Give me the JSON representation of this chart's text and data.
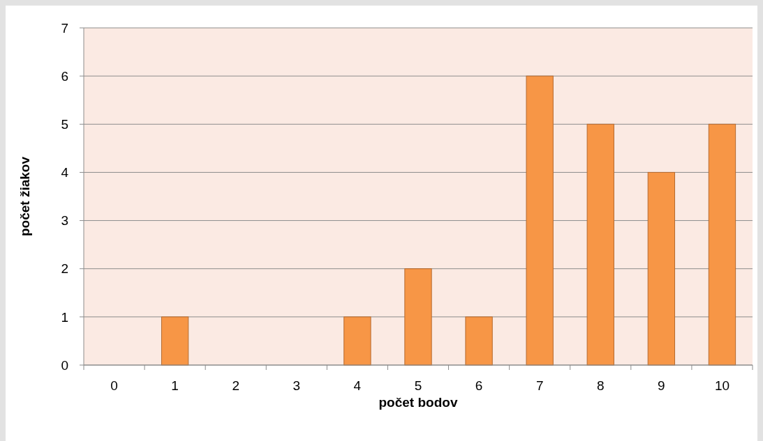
{
  "chart_data": {
    "type": "bar",
    "xlabel": "počet bodov",
    "ylabel": "počet žiakov",
    "categories": [
      "0",
      "1",
      "2",
      "3",
      "4",
      "5",
      "6",
      "7",
      "8",
      "9",
      "10"
    ],
    "values": [
      0,
      1,
      0,
      0,
      1,
      2,
      1,
      6,
      5,
      4,
      5
    ],
    "color": "#f79646",
    "ylim": [
      0,
      7
    ],
    "yticks": [
      0,
      1,
      2,
      3,
      4,
      5,
      6,
      7
    ],
    "grid": "y"
  }
}
